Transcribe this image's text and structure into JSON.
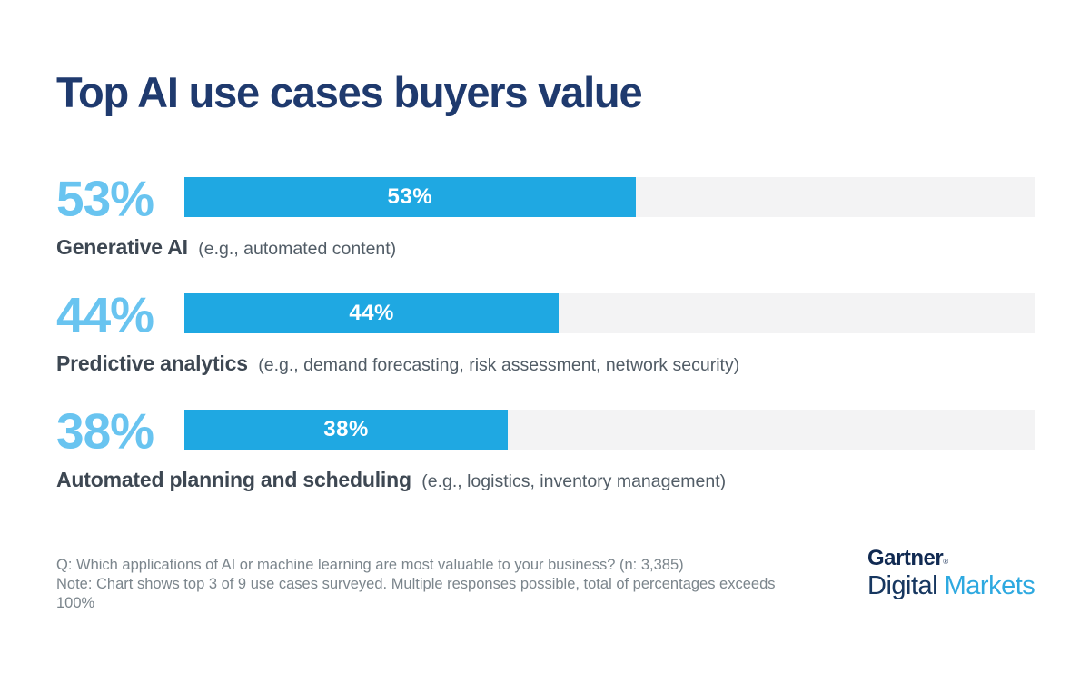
{
  "title": "Top AI use cases buyers value",
  "chart_data": {
    "type": "bar",
    "orientation": "horizontal",
    "title": "Top AI use cases buyers value",
    "categories": [
      "Generative AI",
      "Predictive analytics",
      "Automated planning and scheduling"
    ],
    "values": [
      53,
      44,
      38
    ],
    "value_labels": [
      "53%",
      "44%",
      "38%"
    ],
    "category_notes": [
      "(e.g., automated content)",
      "(e.g., demand forecasting, risk assessment, network security)",
      "(e.g., logistics, inventory management)"
    ],
    "xlim": [
      0,
      100
    ],
    "grid": false,
    "legend": false,
    "bar_color": "#1FA8E2",
    "track_color": "#F3F3F4",
    "big_value_color": "#69C4F0",
    "title_color": "#1F3A6E"
  },
  "rows": [
    {
      "value": 53,
      "big_pct": "53%",
      "bar_pct": "53%",
      "name": "Generative AI",
      "note": "(e.g., automated content)"
    },
    {
      "value": 44,
      "big_pct": "44%",
      "bar_pct": "44%",
      "name": "Predictive analytics",
      "note": "(e.g., demand forecasting, risk assessment, network security)"
    },
    {
      "value": 38,
      "big_pct": "38%",
      "bar_pct": "38%",
      "name": "Automated planning and scheduling",
      "note": "(e.g., logistics, inventory management)"
    }
  ],
  "footnote": {
    "question": "Q: Which applications of AI or machine learning are most valuable to your business? (n: 3,385)",
    "note": "Note: Chart shows top 3 of 9 use cases surveyed. Multiple responses possible, total of percentages exceeds 100%"
  },
  "logo": {
    "brand": "Gartner",
    "registered": "®",
    "line2_dark": "Digital",
    "line2_light": " Markets"
  }
}
